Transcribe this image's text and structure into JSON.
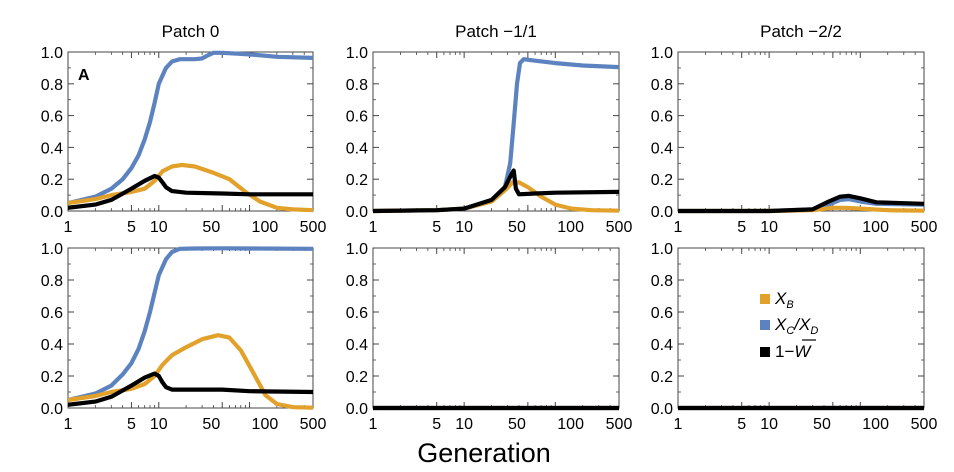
{
  "figure": {
    "xlabel": "Generation",
    "panel_letter": "A"
  },
  "legend": {
    "items": [
      {
        "label_html": "X<tspan font-size='12' dy='4'>B</tspan>",
        "label": "X_B",
        "color": "#E1A12B"
      },
      {
        "label": "X_C/X_D",
        "color": "#5C82BF"
      },
      {
        "label": "1−W̄",
        "color": "#000000"
      }
    ]
  },
  "chart_data": [
    {
      "type": "line",
      "title": "Patch 0",
      "x_scale": "log",
      "xlim": [
        1,
        500
      ],
      "ylim": [
        0,
        1
      ],
      "xticks": [
        1,
        5,
        10,
        50,
        100,
        500
      ],
      "xticklabels": [
        "1",
        "5",
        "10",
        "50",
        "100",
        "500"
      ],
      "yticks": [
        0,
        0.2,
        0.4,
        0.6,
        0.8,
        1.0
      ],
      "yticklabels": [
        "0.0",
        "0.2",
        "0.4",
        "0.6",
        "0.8",
        "1.0"
      ],
      "series": [
        {
          "name": "X_C/X_D",
          "color": "#5C82BF",
          "points": [
            [
              1,
              0.05
            ],
            [
              2,
              0.09
            ],
            [
              3,
              0.14
            ],
            [
              4,
              0.2
            ],
            [
              5,
              0.27
            ],
            [
              6,
              0.35
            ],
            [
              7,
              0.45
            ],
            [
              8,
              0.56
            ],
            [
              9,
              0.68
            ],
            [
              10,
              0.8
            ],
            [
              12,
              0.9
            ],
            [
              14,
              0.94
            ],
            [
              17,
              0.955
            ],
            [
              25,
              0.955
            ],
            [
              30,
              0.96
            ],
            [
              35,
              0.98
            ],
            [
              40,
              0.995
            ],
            [
              50,
              0.995
            ],
            [
              100,
              0.985
            ],
            [
              200,
              0.97
            ],
            [
              500,
              0.963
            ]
          ]
        },
        {
          "name": "X_B",
          "color": "#E1A12B",
          "points": [
            [
              1,
              0.05
            ],
            [
              2,
              0.075
            ],
            [
              3,
              0.1
            ],
            [
              5,
              0.12
            ],
            [
              7,
              0.14
            ],
            [
              9,
              0.19
            ],
            [
              11,
              0.25
            ],
            [
              14,
              0.28
            ],
            [
              18,
              0.29
            ],
            [
              25,
              0.28
            ],
            [
              40,
              0.24
            ],
            [
              60,
              0.2
            ],
            [
              90,
              0.12
            ],
            [
              130,
              0.06
            ],
            [
              200,
              0.02
            ],
            [
              300,
              0.01
            ],
            [
              500,
              0.005
            ]
          ]
        },
        {
          "name": "1−W̄",
          "color": "#000000",
          "points": [
            [
              1,
              0.02
            ],
            [
              2,
              0.04
            ],
            [
              3,
              0.07
            ],
            [
              5,
              0.14
            ],
            [
              7,
              0.19
            ],
            [
              9,
              0.22
            ],
            [
              10,
              0.21
            ],
            [
              11,
              0.18
            ],
            [
              12,
              0.15
            ],
            [
              14,
              0.125
            ],
            [
              20,
              0.115
            ],
            [
              50,
              0.11
            ],
            [
              100,
              0.105
            ],
            [
              500,
              0.105
            ]
          ]
        }
      ]
    },
    {
      "type": "line",
      "title": "Patch −1/1",
      "x_scale": "log",
      "xlim": [
        1,
        500
      ],
      "ylim": [
        0,
        1
      ],
      "xticks": [
        1,
        5,
        10,
        50,
        100,
        500
      ],
      "xticklabels": [
        "1",
        "5",
        "10",
        "50",
        "100",
        "500"
      ],
      "yticks": [
        0,
        0.2,
        0.4,
        0.6,
        0.8,
        1.0
      ],
      "yticklabels": [
        "0.0",
        "0.2",
        "0.4",
        "0.6",
        "0.8",
        "1.0"
      ],
      "series": [
        {
          "name": "X_C/X_D",
          "color": "#5C82BF",
          "points": [
            [
              1,
              0
            ],
            [
              5,
              0.005
            ],
            [
              10,
              0.015
            ],
            [
              20,
              0.06
            ],
            [
              28,
              0.15
            ],
            [
              32,
              0.3
            ],
            [
              35,
              0.55
            ],
            [
              38,
              0.8
            ],
            [
              41,
              0.93
            ],
            [
              45,
              0.955
            ],
            [
              60,
              0.945
            ],
            [
              100,
              0.93
            ],
            [
              200,
              0.915
            ],
            [
              500,
              0.905
            ]
          ]
        },
        {
          "name": "X_B",
          "color": "#E1A12B",
          "points": [
            [
              1,
              0
            ],
            [
              5,
              0.005
            ],
            [
              10,
              0.015
            ],
            [
              20,
              0.06
            ],
            [
              28,
              0.13
            ],
            [
              34,
              0.18
            ],
            [
              40,
              0.18
            ],
            [
              50,
              0.15
            ],
            [
              70,
              0.09
            ],
            [
              100,
              0.04
            ],
            [
              150,
              0.015
            ],
            [
              250,
              0.005
            ],
            [
              500,
              0.002
            ]
          ]
        },
        {
          "name": "1−W̄",
          "color": "#000000",
          "points": [
            [
              1,
              0
            ],
            [
              5,
              0.005
            ],
            [
              10,
              0.015
            ],
            [
              20,
              0.07
            ],
            [
              28,
              0.15
            ],
            [
              33,
              0.23
            ],
            [
              35,
              0.255
            ],
            [
              37,
              0.14
            ],
            [
              40,
              0.105
            ],
            [
              60,
              0.11
            ],
            [
              100,
              0.115
            ],
            [
              500,
              0.12
            ]
          ]
        }
      ]
    },
    {
      "type": "line",
      "title": "Patch −2/2",
      "x_scale": "log",
      "xlim": [
        1,
        500
      ],
      "ylim": [
        0,
        1
      ],
      "xticks": [
        1,
        5,
        10,
        50,
        100,
        500
      ],
      "xticklabels": [
        "1",
        "5",
        "10",
        "50",
        "100",
        "500"
      ],
      "yticks": [
        0,
        0.2,
        0.4,
        0.6,
        0.8,
        1.0
      ],
      "yticklabels": [
        "0.0",
        "0.2",
        "0.4",
        "0.6",
        "0.8",
        "1.0"
      ],
      "series": [
        {
          "name": "X_C/X_D",
          "color": "#5C82BF",
          "points": [
            [
              1,
              0
            ],
            [
              10,
              0
            ],
            [
              30,
              0.01
            ],
            [
              45,
              0.04
            ],
            [
              60,
              0.07
            ],
            [
              75,
              0.075
            ],
            [
              100,
              0.06
            ],
            [
              150,
              0.045
            ],
            [
              500,
              0.04
            ]
          ]
        },
        {
          "name": "X_B",
          "color": "#E1A12B",
          "points": [
            [
              1,
              0
            ],
            [
              10,
              0
            ],
            [
              30,
              0.005
            ],
            [
              50,
              0.02
            ],
            [
              70,
              0.02
            ],
            [
              100,
              0.015
            ],
            [
              200,
              0.005
            ],
            [
              500,
              0.002
            ]
          ]
        },
        {
          "name": "1−W̄",
          "color": "#000000",
          "points": [
            [
              1,
              0
            ],
            [
              10,
              0
            ],
            [
              30,
              0.01
            ],
            [
              45,
              0.06
            ],
            [
              60,
              0.09
            ],
            [
              75,
              0.095
            ],
            [
              100,
              0.08
            ],
            [
              150,
              0.055
            ],
            [
              500,
              0.045
            ]
          ]
        }
      ]
    },
    {
      "type": "line",
      "title": "",
      "x_scale": "log",
      "xlim": [
        1,
        500
      ],
      "ylim": [
        0,
        1
      ],
      "xticks": [
        1,
        5,
        10,
        50,
        100,
        500
      ],
      "xticklabels": [
        "1",
        "5",
        "10",
        "50",
        "100",
        "500"
      ],
      "yticks": [
        0,
        0.2,
        0.4,
        0.6,
        0.8,
        1.0
      ],
      "yticklabels": [
        "0.0",
        "0.2",
        "0.4",
        "0.6",
        "0.8",
        "1.0"
      ],
      "series": [
        {
          "name": "X_C/X_D",
          "color": "#5C82BF",
          "points": [
            [
              1,
              0.05
            ],
            [
              2,
              0.09
            ],
            [
              3,
              0.14
            ],
            [
              4,
              0.21
            ],
            [
              5,
              0.28
            ],
            [
              6,
              0.37
            ],
            [
              7,
              0.48
            ],
            [
              8,
              0.6
            ],
            [
              9,
              0.72
            ],
            [
              10,
              0.83
            ],
            [
              12,
              0.93
            ],
            [
              14,
              0.975
            ],
            [
              17,
              0.995
            ],
            [
              25,
              0.997
            ],
            [
              50,
              0.998
            ],
            [
              100,
              0.997
            ],
            [
              500,
              0.995
            ]
          ]
        },
        {
          "name": "X_B",
          "color": "#E1A12B",
          "points": [
            [
              1,
              0.05
            ],
            [
              2,
              0.075
            ],
            [
              3,
              0.1
            ],
            [
              5,
              0.12
            ],
            [
              7,
              0.15
            ],
            [
              9,
              0.2
            ],
            [
              11,
              0.27
            ],
            [
              14,
              0.33
            ],
            [
              20,
              0.38
            ],
            [
              30,
              0.43
            ],
            [
              45,
              0.455
            ],
            [
              60,
              0.44
            ],
            [
              80,
              0.36
            ],
            [
              110,
              0.22
            ],
            [
              150,
              0.08
            ],
            [
              200,
              0.025
            ],
            [
              300,
              0.005
            ],
            [
              500,
              0.002
            ]
          ]
        },
        {
          "name": "1−W̄",
          "color": "#000000",
          "points": [
            [
              1,
              0.02
            ],
            [
              2,
              0.04
            ],
            [
              3,
              0.07
            ],
            [
              5,
              0.14
            ],
            [
              7,
              0.19
            ],
            [
              9,
              0.215
            ],
            [
              10,
              0.2
            ],
            [
              11,
              0.16
            ],
            [
              12,
              0.13
            ],
            [
              14,
              0.115
            ],
            [
              20,
              0.115
            ],
            [
              50,
              0.115
            ],
            [
              100,
              0.105
            ],
            [
              500,
              0.1
            ]
          ]
        }
      ]
    },
    {
      "type": "line",
      "title": "",
      "x_scale": "log",
      "xlim": [
        1,
        500
      ],
      "ylim": [
        0,
        1
      ],
      "xticks": [
        1,
        5,
        10,
        50,
        100,
        500
      ],
      "xticklabels": [
        "1",
        "5",
        "10",
        "50",
        "100",
        "500"
      ],
      "yticks": [
        0,
        0.2,
        0.4,
        0.6,
        0.8,
        1.0
      ],
      "yticklabels": [
        "0.0",
        "0.2",
        "0.4",
        "0.6",
        "0.8",
        "1.0"
      ],
      "series": [
        {
          "name": "X_C/X_D",
          "color": "#5C82BF",
          "points": [
            [
              1,
              0
            ],
            [
              500,
              0
            ]
          ]
        },
        {
          "name": "X_B",
          "color": "#E1A12B",
          "points": [
            [
              1,
              0
            ],
            [
              500,
              0
            ]
          ]
        },
        {
          "name": "1−W̄",
          "color": "#000000",
          "points": [
            [
              1,
              0
            ],
            [
              500,
              0
            ]
          ]
        }
      ]
    },
    {
      "type": "line",
      "title": "",
      "x_scale": "log",
      "xlim": [
        1,
        500
      ],
      "ylim": [
        0,
        1
      ],
      "xticks": [
        1,
        5,
        10,
        50,
        100,
        500
      ],
      "xticklabels": [
        "1",
        "5",
        "10",
        "50",
        "100",
        "500"
      ],
      "yticks": [
        0,
        0.2,
        0.4,
        0.6,
        0.8,
        1.0
      ],
      "yticklabels": [
        "0.0",
        "0.2",
        "0.4",
        "0.6",
        "0.8",
        "1.0"
      ],
      "series": [
        {
          "name": "X_C/X_D",
          "color": "#5C82BF",
          "points": [
            [
              1,
              0
            ],
            [
              500,
              0
            ]
          ]
        },
        {
          "name": "X_B",
          "color": "#E1A12B",
          "points": [
            [
              1,
              0
            ],
            [
              500,
              0
            ]
          ]
        },
        {
          "name": "1−W̄",
          "color": "#000000",
          "points": [
            [
              1,
              0
            ],
            [
              500,
              0
            ]
          ]
        }
      ]
    }
  ]
}
